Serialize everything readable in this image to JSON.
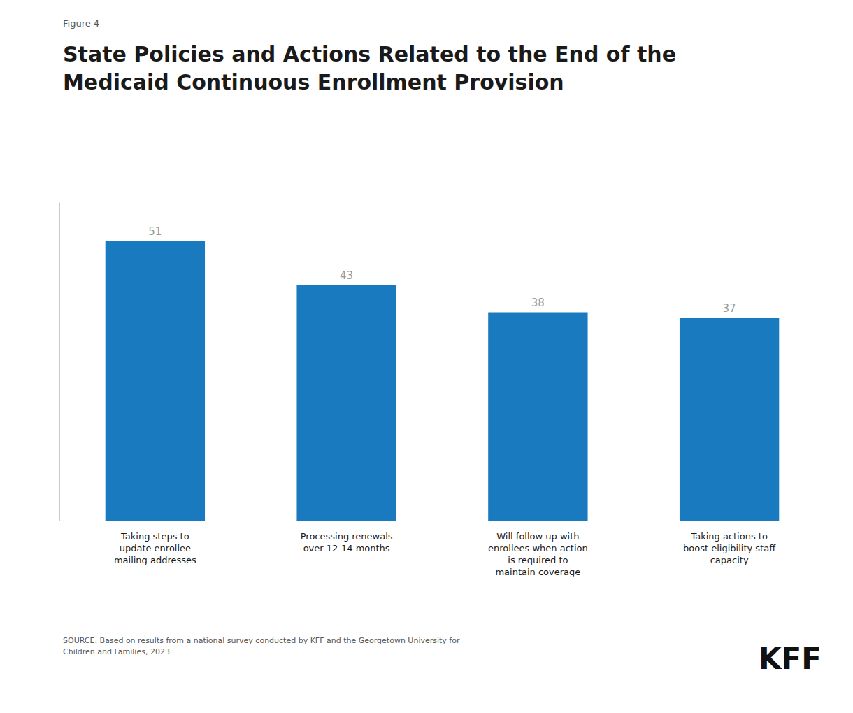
{
  "chart_data": {
    "type": "bar",
    "title": "State Policies and Actions Related to the End of the\nMedicaid Continuous Enrollment Provision",
    "annotations": [
      "Figure 4",
      "SOURCE: Based on results from a national survey conducted by KFF and the Georgetown University for\nChildren and Families, 2023",
      "KFF"
    ],
    "categories": [
      "Taking steps to\nupdate enrollee\nmailing addresses",
      "Processing renewals\nover 12-14 months",
      "Will follow up with\nenrollees when action\nis required to\nmaintain coverage",
      "Taking actions to\nboost eligibility staff\ncapacity"
    ],
    "values": [
      51,
      43,
      38,
      37
    ],
    "color": "#1a7abf",
    "ylim": [
      0,
      58
    ],
    "grid": false,
    "data_labels": true,
    "tick_labels": "x"
  }
}
